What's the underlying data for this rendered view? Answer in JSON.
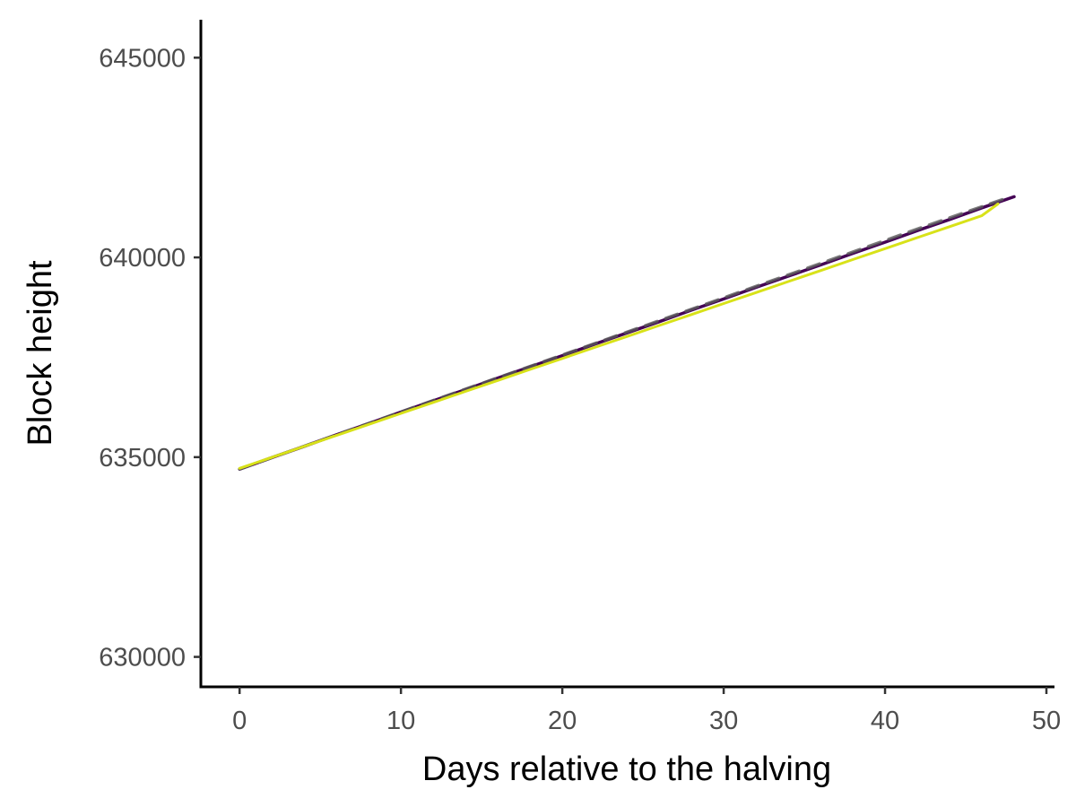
{
  "chart_data": {
    "type": "line",
    "title": "",
    "xlabel": "Days relative to the halving",
    "ylabel": "Block height",
    "xlim": [
      -2.4,
      50.5
    ],
    "ylim": [
      629250,
      645950
    ],
    "x_ticks": [
      0,
      10,
      20,
      30,
      40,
      50
    ],
    "x_tick_labels": [
      "0",
      "10",
      "20",
      "30",
      "40",
      "50"
    ],
    "y_ticks": [
      630000,
      635000,
      640000,
      645000
    ],
    "y_tick_labels": [
      "630000",
      "635000",
      "640000",
      "645000"
    ],
    "grid": false,
    "legend": "none",
    "series": [
      {
        "color": "#440154",
        "style": "solid",
        "x": [
          0,
          2,
          4,
          6,
          8,
          10,
          12,
          14,
          16,
          18,
          20,
          22,
          24,
          26,
          28,
          30,
          32,
          34,
          36,
          38,
          40,
          42,
          44,
          46,
          48
        ],
        "y": [
          634700,
          634990,
          635270,
          635560,
          635840,
          636130,
          636410,
          636690,
          636980,
          637260,
          637540,
          637830,
          638110,
          638390,
          638680,
          638960,
          639250,
          639530,
          639810,
          640100,
          640380,
          640670,
          640950,
          641240,
          641520
        ]
      },
      {
        "color": "#5a5a5a",
        "style": "dashed",
        "x": [
          0,
          6,
          12,
          18,
          24,
          30,
          36,
          42,
          47.5
        ],
        "y": [
          634700,
          635560,
          636420,
          637270,
          638130,
          638990,
          639850,
          640710,
          641480
        ]
      },
      {
        "color": "#d8e219",
        "style": "solid",
        "x": [
          0,
          2,
          4,
          6,
          8,
          10,
          12,
          14,
          16,
          18,
          20,
          22,
          24,
          26,
          28,
          30,
          32,
          34,
          36,
          38,
          40,
          42,
          44,
          46,
          47
        ],
        "y": [
          634720,
          634995,
          635270,
          635545,
          635820,
          636095,
          636370,
          636645,
          636920,
          637195,
          637470,
          637745,
          638020,
          638295,
          638570,
          638845,
          639120,
          639395,
          639670,
          639945,
          640220,
          640495,
          640770,
          641045,
          641340
        ]
      }
    ]
  }
}
